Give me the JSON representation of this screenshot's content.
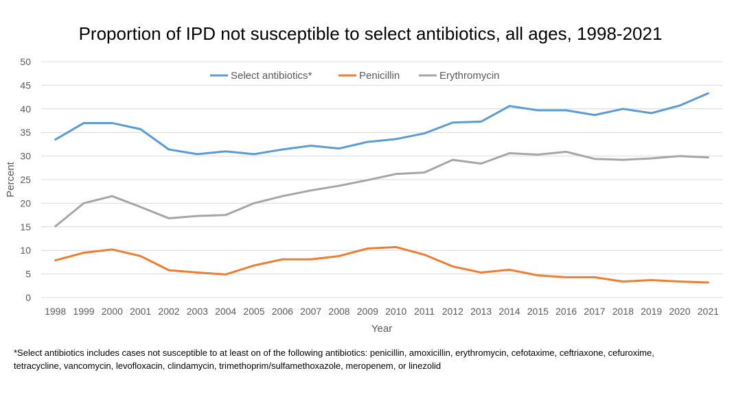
{
  "chart_data": {
    "type": "line",
    "title": "Proportion of IPD not susceptible to select antibiotics, all ages, 1998-2021",
    "xlabel": "Year",
    "ylabel": "Percent",
    "ylim": [
      0,
      50
    ],
    "yticks": [
      0,
      5,
      10,
      15,
      20,
      25,
      30,
      35,
      40,
      45,
      50
    ],
    "grid": true,
    "legend_position": "top-center",
    "categories": [
      "1998",
      "1999",
      "2000",
      "2001",
      "2002",
      "2003",
      "2004",
      "2005",
      "2006",
      "2007",
      "2008",
      "2009",
      "2010",
      "2011",
      "2012",
      "2013",
      "2014",
      "2015",
      "2016",
      "2017",
      "2018",
      "2019",
      "2020",
      "2021"
    ],
    "series": [
      {
        "name": "Select antibiotics*",
        "color": "#5B9BD5",
        "values": [
          33.5,
          37.0,
          37.0,
          35.7,
          31.4,
          30.4,
          31.0,
          30.4,
          31.4,
          32.2,
          31.6,
          33.0,
          33.6,
          34.8,
          37.1,
          37.3,
          40.6,
          39.7,
          39.7,
          38.7,
          40.0,
          39.1,
          40.7,
          43.3
        ]
      },
      {
        "name": "Penicillin",
        "color": "#ED7D31",
        "values": [
          7.9,
          9.5,
          10.2,
          8.8,
          5.8,
          5.3,
          4.9,
          6.8,
          8.1,
          8.1,
          8.8,
          10.4,
          10.7,
          9.1,
          6.6,
          5.3,
          5.9,
          4.7,
          4.3,
          4.3,
          3.4,
          3.7,
          3.4,
          3.2
        ]
      },
      {
        "name": "Erythromycin",
        "color": "#A5A5A5",
        "values": [
          15.1,
          20.0,
          21.5,
          19.2,
          16.8,
          17.3,
          17.5,
          20.0,
          21.5,
          22.7,
          23.7,
          24.9,
          26.2,
          26.5,
          29.2,
          28.4,
          30.6,
          30.3,
          30.9,
          29.4,
          29.2,
          29.5,
          30.0,
          29.7
        ]
      }
    ],
    "footnote": [
      "*Select antibiotics includes cases not susceptible to at least on of the following antibiotics: penicillin, amoxicillin, erythromycin, cefotaxime, ceftriaxone, cefuroxime,",
      "tetracycline, vancomycin, levofloxacin, clindamycin, trimethoprim/sulfamethoxazole, meropenem, or linezolid"
    ],
    "gridline_color": "#D9D9D9",
    "text_color": "#595959"
  }
}
